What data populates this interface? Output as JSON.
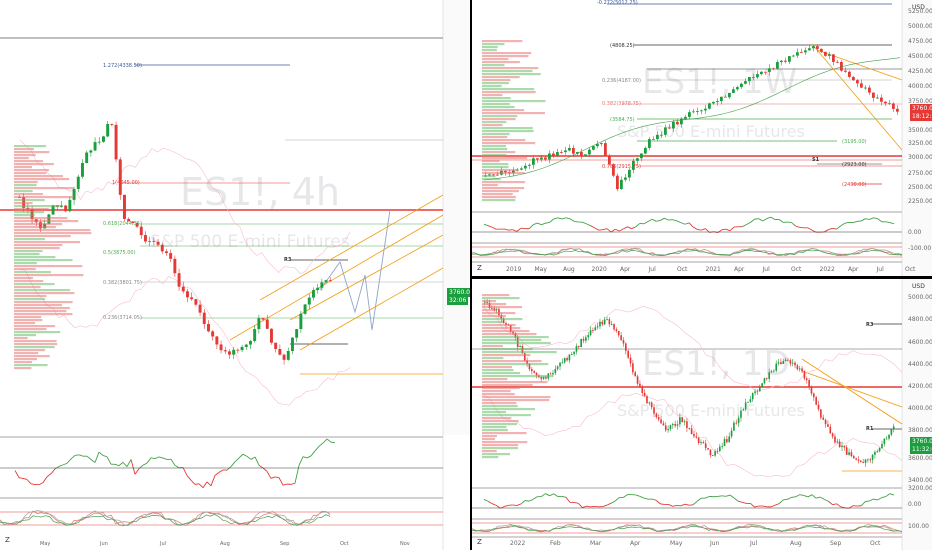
{
  "left_chart": {
    "symbol": "ES1!, 4h",
    "subtitle": "S&P 500 E-mini Futures",
    "fib_levels": [
      {
        "label": "1.272(4338.50)",
        "color": "#3b5998"
      },
      {
        "label": "0.618(2044.35)",
        "color": "#4caf50"
      },
      {
        "label": "0.5(3875.00)",
        "color": "#4caf50"
      },
      {
        "label": "0.382(3801.75)",
        "color": "#888888"
      },
      {
        "label": "0.236(3714.05)",
        "color": "#888888"
      },
      {
        "label": "1(4045.00)",
        "color": "#e53935"
      }
    ],
    "marker_r3": "R3",
    "price_badge_1": "3760.00",
    "price_badge_2": "32:06",
    "x_labels": [
      "May",
      "Jun",
      "Jul",
      "Aug",
      "Sep",
      "Oct",
      "Nov"
    ],
    "z_button": "Z"
  },
  "right_top_chart": {
    "symbol": "ES1!, 1W",
    "subtitle": "S&P 500 E-mini Futures",
    "currency": "USD",
    "fib_levels": [
      {
        "label": "-0.272(5012.25)",
        "color": "#3b5998"
      },
      {
        "label": "(4808.25)",
        "color": "#333333"
      },
      {
        "label": "0.236(4187.00)",
        "color": "#888888"
      },
      {
        "label": "0.382(3978.75)",
        "color": "#e57373"
      },
      {
        "label": "(3584.75)",
        "color": "#4caf50"
      },
      {
        "label": "(3195.00)",
        "color": "#4caf50"
      },
      {
        "label": "0.786(2915.75)",
        "color": "#e53935"
      },
      {
        "label": "(2923.00)",
        "color": "#333333"
      },
      {
        "label": "(2490.00)",
        "color": "#e53935"
      }
    ],
    "y_labels": [
      "5250.00",
      "5000.00",
      "4750.00",
      "4500.00",
      "4250.00",
      "4000.00",
      "3750.00",
      "3500.00",
      "3250.00",
      "3000.00",
      "2750.00",
      "2500.00",
      "2250.00",
      "0.00",
      "-100.00"
    ],
    "price_badge_1": "3760.00",
    "price_badge_2": "18:12:55",
    "x_labels": [
      "2019",
      "May",
      "Aug",
      "2020",
      "Apr",
      "Jul",
      "Oct",
      "2021",
      "Apr",
      "Jul",
      "Oct",
      "2022",
      "Apr",
      "Jul",
      "Oct"
    ],
    "marker_s1": "S1",
    "z_button": "Z"
  },
  "right_bottom_chart": {
    "symbol": "ES1!, 1D",
    "subtitle": "S&P 500 E-mini Futures",
    "currency": "USD",
    "y_labels": [
      "5000.00",
      "4800.00",
      "4600.00",
      "4400.00",
      "4200.00",
      "4000.00",
      "3800.00",
      "3600.00",
      "3400.00",
      "3200.00",
      "0.00",
      "100.00"
    ],
    "price_badge_1": "3760.00",
    "price_badge_2": "11:32:08",
    "marker_r3": "R3",
    "marker_r1": "R1",
    "x_labels": [
      "2022",
      "Feb",
      "Mar",
      "Apr",
      "May",
      "Jun",
      "Jul",
      "Aug",
      "Sep",
      "Oct"
    ],
    "z_button": "Z"
  }
}
